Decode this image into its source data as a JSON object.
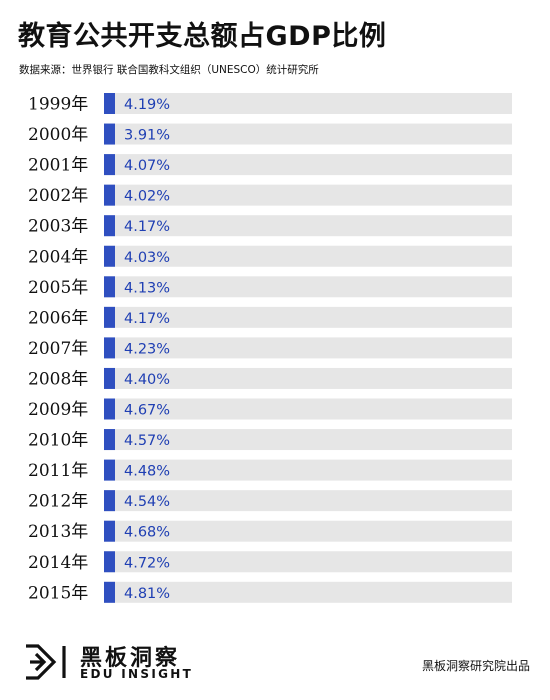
{
  "title": "教育公共开支总额占GDP比例",
  "source": "数据来源：世界银行 联合国教科文组织（UNESCO）统计研究所",
  "colors": {
    "bar": "#2f4fc0",
    "track": "#e6e6e6",
    "label": "#1f3fb3",
    "text": "#111111"
  },
  "chart_data": {
    "type": "bar",
    "orientation": "horizontal",
    "categories": [
      "1999年",
      "2000年",
      "2001年",
      "2002年",
      "2003年",
      "2004年",
      "2005年",
      "2006年",
      "2007年",
      "2008年",
      "2009年",
      "2010年",
      "2011年",
      "2012年",
      "2013年",
      "2014年",
      "2015年"
    ],
    "values": [
      4.19,
      3.91,
      4.07,
      4.02,
      4.17,
      4.03,
      4.13,
      4.17,
      4.23,
      4.4,
      4.67,
      4.57,
      4.48,
      4.54,
      4.68,
      4.72,
      4.81
    ],
    "labels": [
      "4.19%",
      "3.91%",
      "4.07%",
      "4.02%",
      "4.17%",
      "4.03%",
      "4.13%",
      "4.17%",
      "4.23%",
      "4.40%",
      "4.67%",
      "4.57%",
      "4.48%",
      "4.54%",
      "4.68%",
      "4.72%",
      "4.81%"
    ],
    "unit": "%",
    "title": "教育公共开支总额占GDP比例",
    "xlabel": "",
    "ylabel": ""
  },
  "footer": {
    "logo_icon": "edu-insight-logo-icon",
    "brand_cn": "黑板洞察",
    "brand_en": "EDU INSIGHT",
    "credit": "黑板洞察研究院出品"
  }
}
